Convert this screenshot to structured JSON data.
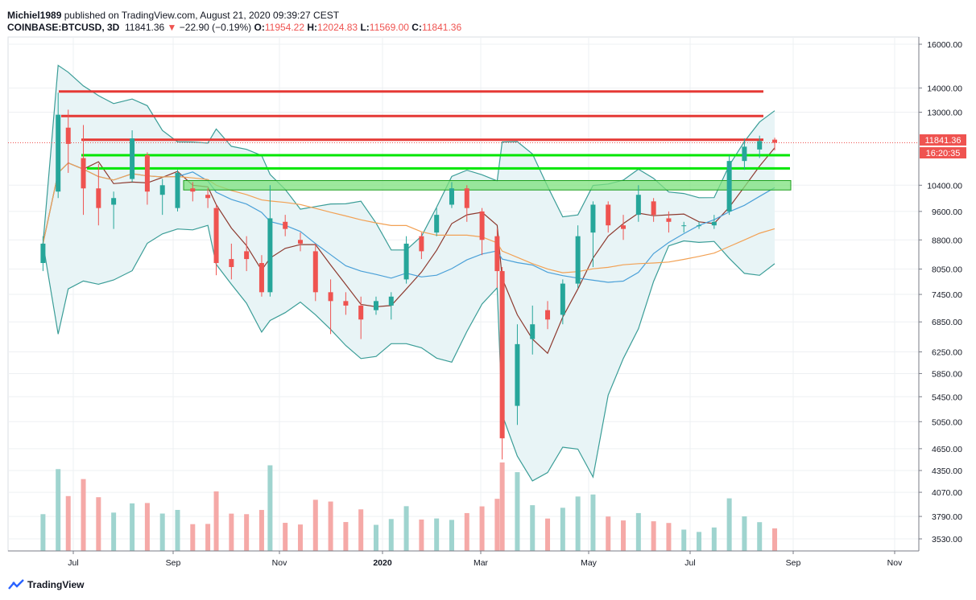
{
  "header": {
    "author": "Michiel1989",
    "published_text": "published on TradingView.com, August 21, 2020 09:39:27 CEST",
    "symbol": "COINBASE:BTCUSD, 3D",
    "last": "11841.36",
    "change_arrow": "▼",
    "change": "−22.90 (−0.19%)",
    "o_label": "O:",
    "o_value": "11954.22",
    "h_label": "H:",
    "h_value": "12024.83",
    "l_label": "L:",
    "l_value": "11569.00",
    "c_label": "C:",
    "c_value": "11841.36"
  },
  "price_tag": {
    "price": "11841.36",
    "countdown": "16:20:35",
    "color": "#ef5350"
  },
  "footer": {
    "brand": "TradingView"
  },
  "colors": {
    "up": "#26a69a",
    "down": "#ef5350",
    "resistance": "#e53935",
    "support": "#00e600",
    "bb_fill": "#e8f4f6",
    "bb_line": "#3a9d97",
    "ma_short": "#8d3a2f",
    "ma_mid": "#4aa0d8",
    "ma_long": "#f2a154"
  },
  "chart_data": {
    "type": "candlestick",
    "y_scale": "log",
    "y_ticks": [
      "16000.00",
      "14000.00",
      "13000.00",
      "10400.00",
      "9600.00",
      "8800.00",
      "8050.00",
      "7450.00",
      "6850.00",
      "6250.00",
      "5850.00",
      "5450.00",
      "5050.00",
      "4650.00",
      "4350.00",
      "4070.00",
      "3790.00",
      "3530.00"
    ],
    "x_ticks": [
      "Jul",
      "Sep",
      "Nov",
      "2020",
      "Mar",
      "May",
      "Jul",
      "Sep",
      "Nov"
    ],
    "resistance_levels": [
      13850,
      12850,
      11950
    ],
    "support_levels": [
      11400,
      10950
    ],
    "support_zone": [
      10250,
      10550
    ],
    "candles": [
      {
        "date": "2019-06-13",
        "o": 8200,
        "h": 8900,
        "l": 8000,
        "c": 8700
      },
      {
        "date": "2019-06-22",
        "o": 10200,
        "h": 13800,
        "l": 10000,
        "c": 12900
      },
      {
        "date": "2019-06-28",
        "o": 12400,
        "h": 13100,
        "l": 10800,
        "c": 11800
      },
      {
        "date": "2019-07-07",
        "o": 11300,
        "h": 12500,
        "l": 9500,
        "c": 10300
      },
      {
        "date": "2019-07-16",
        "o": 10300,
        "h": 11100,
        "l": 9200,
        "c": 9700
      },
      {
        "date": "2019-07-25",
        "o": 9800,
        "h": 10200,
        "l": 9100,
        "c": 10000
      },
      {
        "date": "2019-08-05",
        "o": 10600,
        "h": 12300,
        "l": 10500,
        "c": 12000
      },
      {
        "date": "2019-08-14",
        "o": 11400,
        "h": 11500,
        "l": 9800,
        "c": 10200
      },
      {
        "date": "2019-08-23",
        "o": 10100,
        "h": 10600,
        "l": 9500,
        "c": 10400
      },
      {
        "date": "2019-09-01",
        "o": 9700,
        "h": 10900,
        "l": 9600,
        "c": 10800
      },
      {
        "date": "2019-09-10",
        "o": 10300,
        "h": 10500,
        "l": 9900,
        "c": 10200
      },
      {
        "date": "2019-09-19",
        "o": 10100,
        "h": 10300,
        "l": 9700,
        "c": 10000
      },
      {
        "date": "2019-09-24",
        "o": 9700,
        "h": 9800,
        "l": 7900,
        "c": 8200
      },
      {
        "date": "2019-10-03",
        "o": 8300,
        "h": 8700,
        "l": 7800,
        "c": 8100
      },
      {
        "date": "2019-10-12",
        "o": 8500,
        "h": 8900,
        "l": 8000,
        "c": 8300
      },
      {
        "date": "2019-10-21",
        "o": 8200,
        "h": 8400,
        "l": 7400,
        "c": 7500
      },
      {
        "date": "2019-10-26",
        "o": 7500,
        "h": 10400,
        "l": 7400,
        "c": 9400
      },
      {
        "date": "2019-11-04",
        "o": 9300,
        "h": 9500,
        "l": 8900,
        "c": 9100
      },
      {
        "date": "2019-11-13",
        "o": 8800,
        "h": 9000,
        "l": 8500,
        "c": 8700
      },
      {
        "date": "2019-11-22",
        "o": 8500,
        "h": 8700,
        "l": 7300,
        "c": 7500
      },
      {
        "date": "2019-12-01",
        "o": 7500,
        "h": 7800,
        "l": 6600,
        "c": 7300
      },
      {
        "date": "2019-12-10",
        "o": 7300,
        "h": 7500,
        "l": 7000,
        "c": 7200
      },
      {
        "date": "2019-12-19",
        "o": 7200,
        "h": 7400,
        "l": 6500,
        "c": 6900
      },
      {
        "date": "2019-12-28",
        "o": 7100,
        "h": 7400,
        "l": 7000,
        "c": 7300
      },
      {
        "date": "2020-01-06",
        "o": 7200,
        "h": 7500,
        "l": 6900,
        "c": 7400
      },
      {
        "date": "2020-01-15",
        "o": 7800,
        "h": 8900,
        "l": 7700,
        "c": 8700
      },
      {
        "date": "2020-01-24",
        "o": 8900,
        "h": 9000,
        "l": 8300,
        "c": 8500
      },
      {
        "date": "2020-02-02",
        "o": 9000,
        "h": 9700,
        "l": 8900,
        "c": 9500
      },
      {
        "date": "2020-02-11",
        "o": 9800,
        "h": 10500,
        "l": 9700,
        "c": 10300
      },
      {
        "date": "2020-02-20",
        "o": 10300,
        "h": 10400,
        "l": 9300,
        "c": 9700
      },
      {
        "date": "2020-02-29",
        "o": 9600,
        "h": 9700,
        "l": 8400,
        "c": 8800
      },
      {
        "date": "2020-03-09",
        "o": 8900,
        "h": 9100,
        "l": 7600,
        "c": 8000
      },
      {
        "date": "2020-03-12",
        "o": 8000,
        "h": 8100,
        "l": 4500,
        "c": 4800
      },
      {
        "date": "2020-03-21",
        "o": 5300,
        "h": 6800,
        "l": 5000,
        "c": 6400
      },
      {
        "date": "2020-03-30",
        "o": 6500,
        "h": 7200,
        "l": 6200,
        "c": 6800
      },
      {
        "date": "2020-04-08",
        "o": 7100,
        "h": 7300,
        "l": 6700,
        "c": 6900
      },
      {
        "date": "2020-04-17",
        "o": 7000,
        "h": 7800,
        "l": 6800,
        "c": 7700
      },
      {
        "date": "2020-04-26",
        "o": 7700,
        "h": 9200,
        "l": 7600,
        "c": 8900
      },
      {
        "date": "2020-05-05",
        "o": 9000,
        "h": 9900,
        "l": 8100,
        "c": 9800
      },
      {
        "date": "2020-05-14",
        "o": 9800,
        "h": 9900,
        "l": 9000,
        "c": 9200
      },
      {
        "date": "2020-05-23",
        "o": 9200,
        "h": 9500,
        "l": 8800,
        "c": 9100
      },
      {
        "date": "2020-06-01",
        "o": 9500,
        "h": 10400,
        "l": 9300,
        "c": 10100
      },
      {
        "date": "2020-06-10",
        "o": 9900,
        "h": 10000,
        "l": 9300,
        "c": 9500
      },
      {
        "date": "2020-06-19",
        "o": 9400,
        "h": 9600,
        "l": 9000,
        "c": 9300
      },
      {
        "date": "2020-06-28",
        "o": 9200,
        "h": 9300,
        "l": 9000,
        "c": 9200
      },
      {
        "date": "2020-07-07",
        "o": 9200,
        "h": 9300,
        "l": 9100,
        "c": 9200
      },
      {
        "date": "2020-07-16",
        "o": 9200,
        "h": 9500,
        "l": 9100,
        "c": 9300
      },
      {
        "date": "2020-07-25",
        "o": 9600,
        "h": 11400,
        "l": 9500,
        "c": 11200
      },
      {
        "date": "2020-08-03",
        "o": 11200,
        "h": 12000,
        "l": 10900,
        "c": 11700
      },
      {
        "date": "2020-08-12",
        "o": 11600,
        "h": 12100,
        "l": 11300,
        "c": 11900
      },
      {
        "date": "2020-08-21",
        "o": 11954.22,
        "h": 12024.83,
        "l": 11569,
        "c": 11841.36
      }
    ],
    "indicators": [
      "Bollinger Bands (20, 2)",
      "MA short",
      "MA mid",
      "MA long"
    ]
  }
}
